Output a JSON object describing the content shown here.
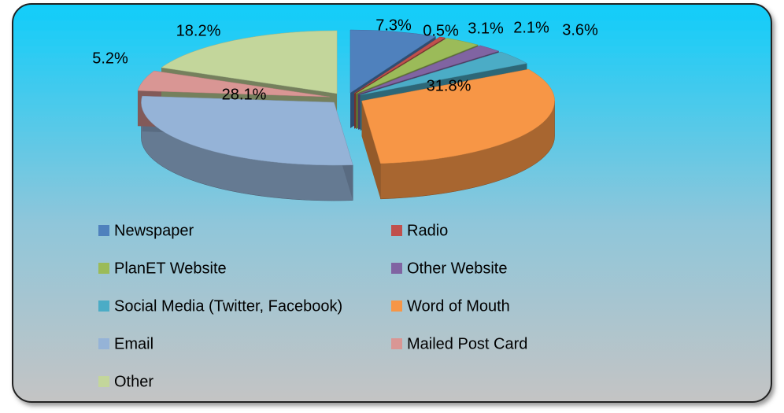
{
  "chart_data": {
    "type": "pie",
    "categories": [
      "Newspaper",
      "Radio",
      "PlanET Website",
      "Other Website",
      "Social Media (Twitter, Facebook)",
      "Word of Mouth",
      "Email",
      "Mailed Post Card",
      "Other"
    ],
    "values": [
      7.3,
      0.5,
      3.1,
      2.1,
      3.6,
      31.8,
      28.1,
      5.2,
      18.2
    ],
    "value_labels": [
      "7.3%",
      "0.5%",
      "3.1%",
      "2.1%",
      "3.6%",
      "31.8%",
      "28.1%",
      "5.2%",
      "18.2%"
    ],
    "colors": [
      "#4f81bd",
      "#c0504d",
      "#9bbb59",
      "#8064a2",
      "#4bacc6",
      "#f79646",
      "#95b3d7",
      "#d99694",
      "#c3d69b"
    ],
    "legend": "bottom"
  }
}
